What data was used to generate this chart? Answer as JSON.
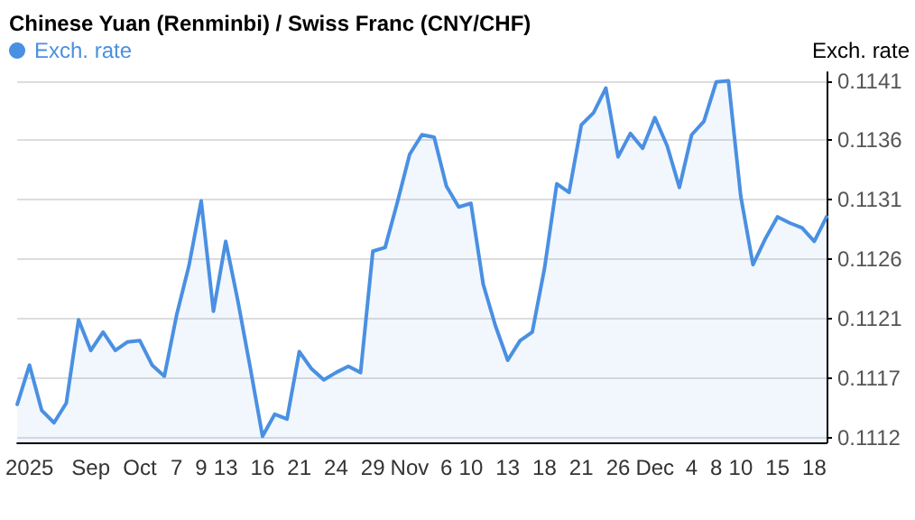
{
  "chart_data": {
    "type": "area",
    "title": "Chinese Yuan (Renminbi) / Swiss Franc (CNY/CHF)",
    "ylabel": "Exch. rate",
    "categories": [
      null,
      "2025",
      null,
      null,
      null,
      null,
      "Sep",
      null,
      null,
      null,
      "Oct",
      null,
      null,
      "7",
      null,
      "9",
      null,
      "13",
      null,
      null,
      "16",
      null,
      null,
      "21",
      null,
      null,
      "24",
      null,
      null,
      "29",
      null,
      null,
      "Nov",
      null,
      null,
      "6",
      null,
      "10",
      null,
      null,
      "13",
      null,
      null,
      "18",
      null,
      null,
      "21",
      null,
      null,
      "26",
      null,
      null,
      "Dec",
      null,
      null,
      "4",
      null,
      "8",
      null,
      "10",
      null,
      null,
      "15",
      null,
      null,
      "18",
      null
    ],
    "series": [
      {
        "name": "Exch. rate",
        "color": "#4a90e2",
        "values": [
          0.11145,
          0.11177,
          0.1114,
          0.1113,
          0.11146,
          0.11214,
          0.11189,
          0.11204,
          0.11189,
          0.11196,
          0.11197,
          0.11177,
          0.11168,
          0.11218,
          0.11258,
          0.11311,
          0.11221,
          0.11278,
          0.11229,
          0.11175,
          0.11119,
          0.11137,
          0.11133,
          0.11188,
          0.11174,
          0.11165,
          0.11171,
          0.11176,
          0.11171,
          0.1127,
          0.11273,
          0.1131,
          0.11349,
          0.11365,
          0.11363,
          0.11323,
          0.11306,
          0.11309,
          0.11243,
          0.11209,
          0.11181,
          0.11197,
          0.11204,
          0.11256,
          0.11325,
          0.11318,
          0.11373,
          0.11383,
          0.11403,
          0.11347,
          0.11366,
          0.11354,
          0.11379,
          0.11356,
          0.11322,
          0.11365,
          0.11376,
          0.11408,
          0.11409,
          0.11315,
          0.11259,
          0.1128,
          0.11298,
          0.11293,
          0.11289,
          0.11278,
          0.11298
        ]
      }
    ],
    "ylim": [
      0.11114,
      0.11416
    ],
    "yticks": [
      {
        "value": 0.11118,
        "label": "0.1112"
      },
      {
        "value": 0.111665,
        "label": "0.1117"
      },
      {
        "value": 0.11215,
        "label": "0.1121"
      },
      {
        "value": 0.112635,
        "label": "0.1126"
      },
      {
        "value": 0.11312,
        "label": "0.1131"
      },
      {
        "value": 0.113605,
        "label": "0.1136"
      },
      {
        "value": 0.11409,
        "label": "0.1141"
      }
    ],
    "grid": "y",
    "legend": "top left",
    "marker": "none",
    "line_style": "solid"
  }
}
